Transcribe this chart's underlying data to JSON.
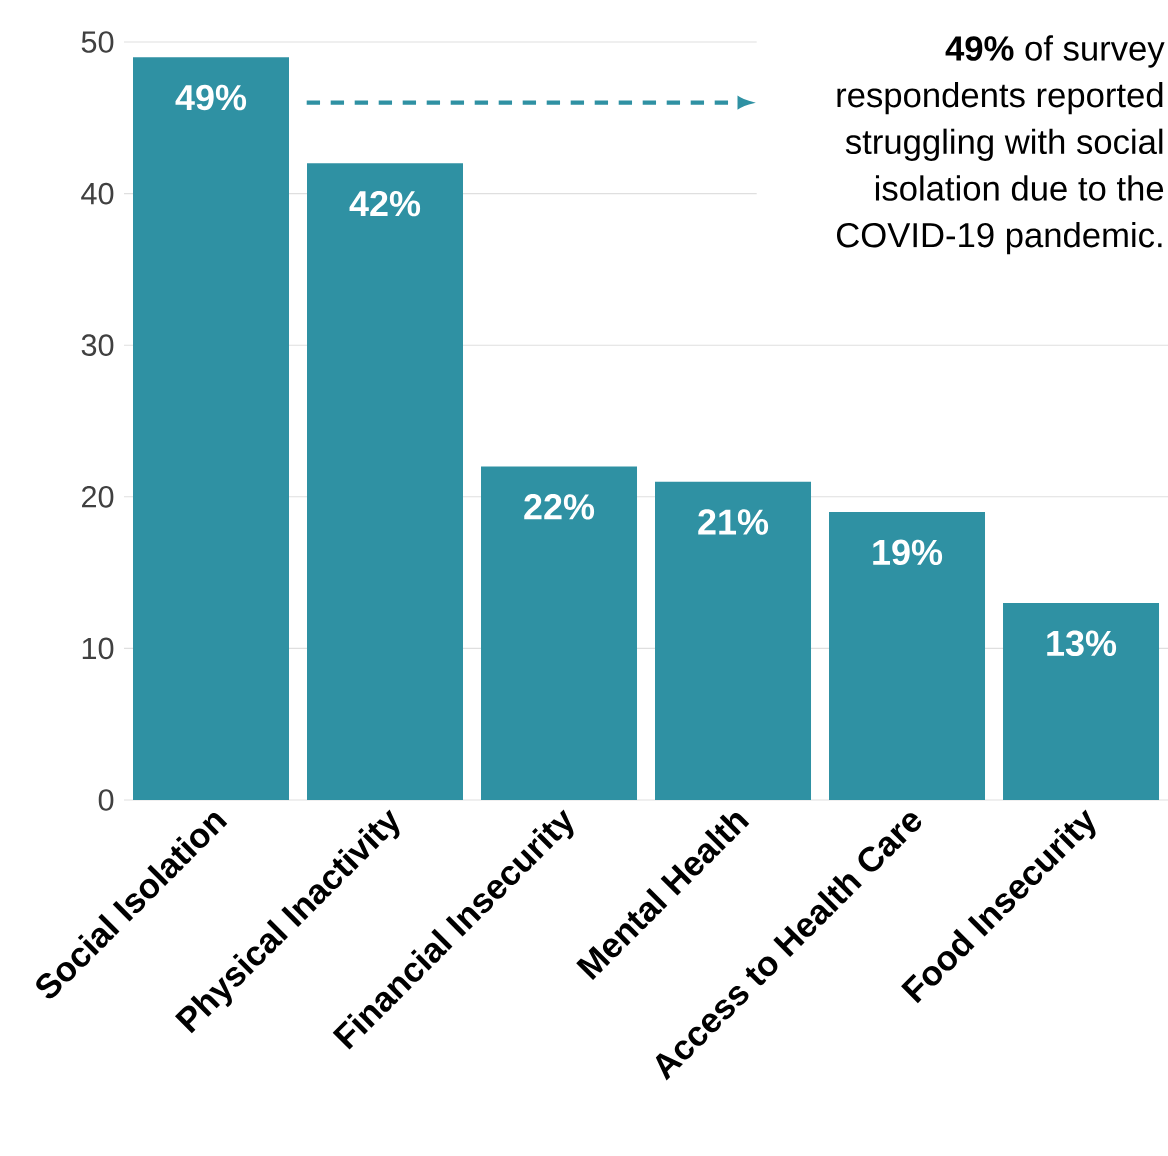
{
  "chart_data": {
    "type": "bar",
    "categories": [
      "Social Isolation",
      "Physical Inactivity",
      "Financial Insecurity",
      "Mental Health",
      "Access to Health Care",
      "Food Insecurity"
    ],
    "values": [
      49,
      42,
      22,
      21,
      19,
      13
    ],
    "value_labels": [
      "49%",
      "42%",
      "22%",
      "21%",
      "19%",
      "13%"
    ],
    "color": "#2f91a3",
    "ylim": [
      0,
      50
    ],
    "yticks": [
      0,
      10,
      20,
      30,
      40,
      50
    ],
    "grid": "y",
    "annotations": [
      "**49%** of survey respondents reported struggling with social isolation due to the COVID-19 pandemic."
    ]
  }
}
